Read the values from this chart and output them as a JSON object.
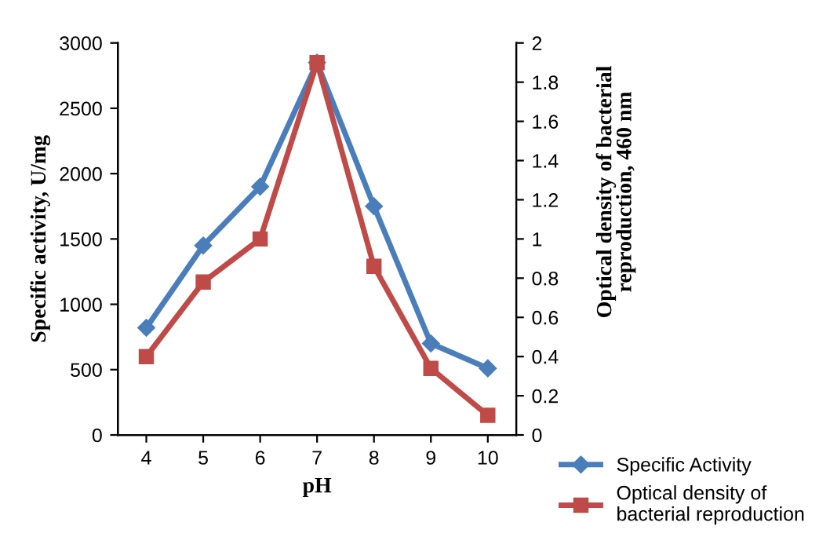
{
  "chart_data": {
    "type": "line",
    "xlabel": "pH",
    "ylabel": "Specific activity, U/mg",
    "y2label": "Optical density of bacterial\nreproduction, 460 nm",
    "categories": [
      "4",
      "5",
      "6",
      "7",
      "8",
      "9",
      "10"
    ],
    "series": [
      {
        "name": "Specific Activity",
        "color": "#4a7ebb",
        "marker": "diamond",
        "values": [
          820,
          1450,
          1900,
          2850,
          1750,
          700,
          510
        ]
      },
      {
        "name": "Optical density of\nbacterial reproduction",
        "color": "#be4b48",
        "marker": "square",
        "axis": "y2",
        "values": [
          0.4,
          0.78,
          1,
          1.9,
          0.86,
          0.34,
          0.1
        ]
      }
    ],
    "ylim": [
      0,
      3000
    ],
    "yticks": [
      0,
      500,
      1000,
      1500,
      2000,
      2500,
      3000
    ],
    "y2lim": [
      0,
      2
    ],
    "y2ticks": [
      0,
      0.2,
      0.4,
      0.6,
      0.8,
      1,
      1.2,
      1.4,
      1.6,
      1.8,
      2
    ],
    "grid": false,
    "legend": "bottom right",
    "line_style": "solid"
  }
}
